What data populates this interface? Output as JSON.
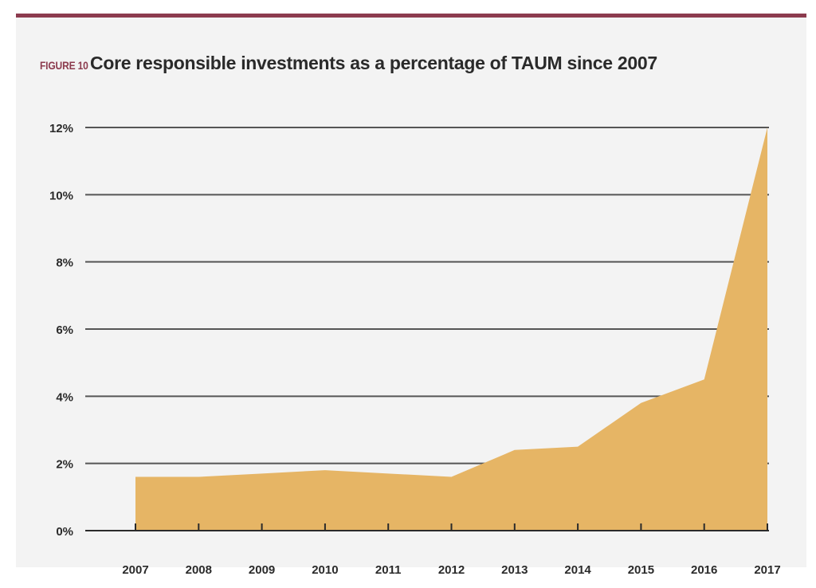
{
  "figure": {
    "label": "FIGURE 10",
    "title": "Core responsible investments as a percentage of TAUM since 2007"
  },
  "colors": {
    "accent": "#8c3b4e",
    "area_fill": "#e6b565",
    "grid": "#555555",
    "background": "#f3f3f3"
  },
  "chart_data": {
    "type": "area",
    "title": "Core responsible investments as a percentage of TAUM since 2007",
    "xlabel": "",
    "ylabel": "",
    "categories": [
      "2007",
      "2008",
      "2009",
      "2010",
      "2011",
      "2012",
      "2013",
      "2014",
      "2015",
      "2016",
      "2017"
    ],
    "values": [
      1.6,
      1.6,
      1.7,
      1.8,
      1.7,
      1.6,
      2.4,
      2.5,
      3.8,
      4.5,
      12.0
    ],
    "ylim": [
      0,
      12
    ],
    "yticks": [
      0,
      2,
      4,
      6,
      8,
      10,
      12
    ],
    "ytick_labels": [
      "0%",
      "2%",
      "4%",
      "6%",
      "8%",
      "10%",
      "12%"
    ],
    "grid": true,
    "legend": "none"
  }
}
